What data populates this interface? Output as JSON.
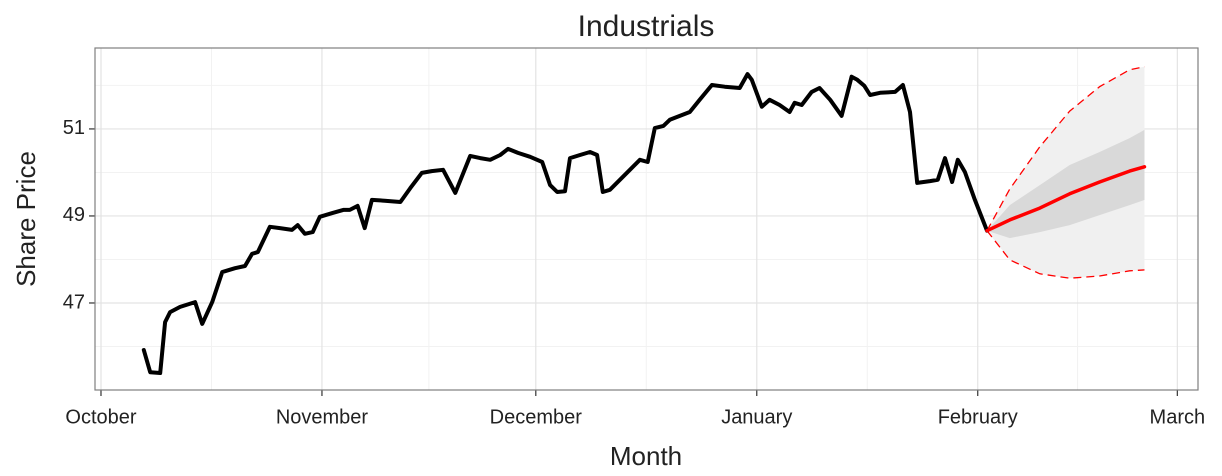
{
  "chart_data": {
    "type": "line",
    "title": "Industrials",
    "xlabel": "Month",
    "ylabel": "Share Price",
    "xlim": [
      -0.84,
      153.9
    ],
    "ylim": [
      45,
      52.86
    ],
    "yticks": [
      47,
      49,
      51
    ],
    "xticks": [
      {
        "value": 0,
        "label": "October"
      },
      {
        "value": 31,
        "label": "November"
      },
      {
        "value": 61,
        "label": "December"
      },
      {
        "value": 92,
        "label": "January"
      },
      {
        "value": 123,
        "label": "February"
      },
      {
        "value": 151,
        "label": "March"
      }
    ],
    "grid": true,
    "bands": [
      {
        "color": "#f0f0f0",
        "edge_color": "#ff0000",
        "x": [
          124.3,
          127.5,
          131.7,
          135.9,
          140.1,
          144.3,
          146.4
        ],
        "lower": [
          48.66,
          47.99,
          47.67,
          47.57,
          47.62,
          47.74,
          47.76
        ],
        "upper": [
          48.66,
          49.62,
          50.59,
          51.41,
          51.97,
          52.36,
          52.43
        ]
      },
      {
        "color": "#d9d9d9",
        "x": [
          124.3,
          127.5,
          131.7,
          135.9,
          140.1,
          144.3,
          146.4
        ],
        "lower": [
          48.66,
          48.49,
          48.63,
          48.79,
          49.02,
          49.25,
          49.37
        ],
        "upper": [
          48.66,
          49.25,
          49.71,
          50.17,
          50.47,
          50.79,
          50.98
        ]
      }
    ],
    "series": [
      {
        "color": "#000000",
        "width": 4,
        "x": [
          6.0,
          6.9,
          8.3,
          9.0,
          9.7,
          11.1,
          13.2,
          14.2,
          15.6,
          17.0,
          18.8,
          20.2,
          21.2,
          22.0,
          23.7,
          25.1,
          26.8,
          27.6,
          28.6,
          29.7,
          30.7,
          32.5,
          34.0,
          34.9,
          36.0,
          37.0,
          38.0,
          39.8,
          42.0,
          43.4,
          45.0,
          46.4,
          48.0,
          49.7,
          51.8,
          53.2,
          54.6,
          56.0,
          57.1,
          58.5,
          60.2,
          61.9,
          63.0,
          64.0,
          65.1,
          65.8,
          67.2,
          68.6,
          69.6,
          70.4,
          71.4,
          72.8,
          74.2,
          75.6,
          76.7,
          77.7,
          78.9,
          79.8,
          81.2,
          82.6,
          84.0,
          85.7,
          87.5,
          89.6,
          90.7,
          91.3,
          92.7,
          93.8,
          95.2,
          96.6,
          97.3,
          98.3,
          99.7,
          100.8,
          102.3,
          103.9,
          105.3,
          106.1,
          107.1,
          107.9,
          109.3,
          111.4,
          112.5,
          113.5,
          114.5,
          116.3,
          117.4,
          118.4,
          119.4,
          120.2,
          121.2,
          122.6,
          124.3
        ],
        "values": [
          45.92,
          45.41,
          45.39,
          46.56,
          46.79,
          46.91,
          47.02,
          46.52,
          47.02,
          47.71,
          47.8,
          47.85,
          48.13,
          48.17,
          48.75,
          48.72,
          48.68,
          48.79,
          48.59,
          48.63,
          48.98,
          49.07,
          49.14,
          49.14,
          49.23,
          48.72,
          49.37,
          49.35,
          49.32,
          49.64,
          49.99,
          50.03,
          50.06,
          49.53,
          50.38,
          50.33,
          50.29,
          50.4,
          50.54,
          50.45,
          50.36,
          50.24,
          49.71,
          49.55,
          49.57,
          50.33,
          50.4,
          50.47,
          50.4,
          49.55,
          49.6,
          49.83,
          50.06,
          50.29,
          50.24,
          51.02,
          51.07,
          51.21,
          51.3,
          51.39,
          51.67,
          52.01,
          51.97,
          51.94,
          52.26,
          52.13,
          51.51,
          51.67,
          51.55,
          51.39,
          51.6,
          51.55,
          51.85,
          51.94,
          51.67,
          51.3,
          52.2,
          52.13,
          51.99,
          51.78,
          51.83,
          51.85,
          52.01,
          51.39,
          49.76,
          49.8,
          49.83,
          50.33,
          49.78,
          50.29,
          50.01,
          49.37,
          48.66
        ]
      },
      {
        "color": "#ff0000",
        "width": 3.5,
        "x": [
          124.3,
          127.5,
          131.7,
          135.9,
          140.1,
          144.3,
          146.4
        ],
        "values": [
          48.66,
          48.91,
          49.18,
          49.51,
          49.78,
          50.03,
          50.13
        ]
      }
    ]
  }
}
